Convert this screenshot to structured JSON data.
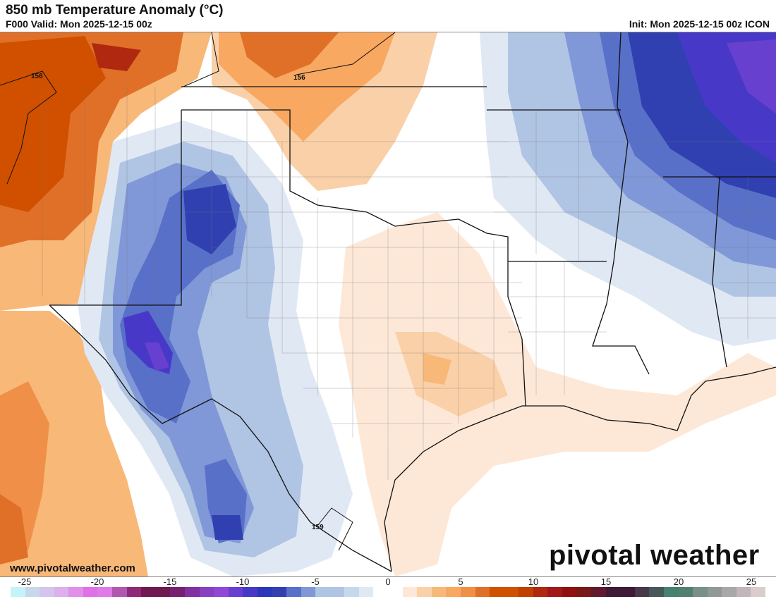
{
  "header": {
    "title": "850 mb Temperature Anomaly (°C)",
    "valid": "F000 Valid: Mon 2025-12-15 00z",
    "init": "Init: Mon 2025-12-15 00z ICON"
  },
  "map": {
    "contour_labels": [
      "156",
      "156",
      "159"
    ]
  },
  "footer": {
    "url": "www.pivotalweather.com",
    "logo": "pivotal weather"
  },
  "colorbar": {
    "tick_labels": [
      "-25",
      "-20",
      "-15",
      "-10",
      "-5",
      "0",
      "5",
      "10",
      "15",
      "20",
      "25"
    ],
    "colors": [
      "#c4f4f8",
      "#c8d8ec",
      "#d4c4ee",
      "#dcb0ea",
      "#e090e8",
      "#e070e8",
      "#e07ae8",
      "#b058b0",
      "#902a78",
      "#701850",
      "#701850",
      "#782070",
      "#8030a0",
      "#8840c0",
      "#9048d8",
      "#6840d0",
      "#4838c8",
      "#2838b8",
      "#3040b0",
      "#5870c8",
      "#8098d8",
      "#b0c4e4",
      "#b0c4e4",
      "#c8d8ec",
      "#e0e8f4",
      "#ffffff",
      "#ffffff",
      "#fde8d8",
      "#fad0a8",
      "#f8b878",
      "#f8a860",
      "#f09048",
      "#e07028",
      "#d05000",
      "#d05000",
      "#c04000",
      "#b02810",
      "#a01818",
      "#901010",
      "#781818",
      "#601830",
      "#401838",
      "#401838",
      "#483848",
      "#485858",
      "#488070",
      "#508070",
      "#789088",
      "#909898",
      "#a8a8a8",
      "#c0b8b8",
      "#dccccc"
    ]
  }
}
